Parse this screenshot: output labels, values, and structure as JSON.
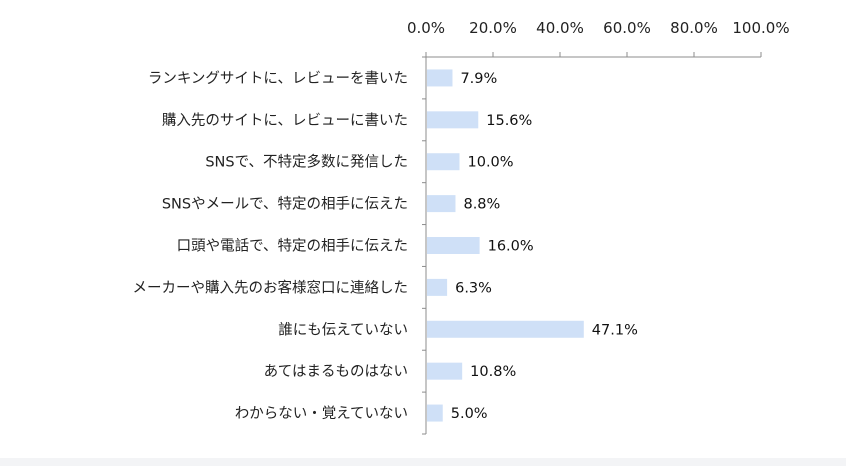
{
  "chart_data": {
    "type": "bar",
    "orientation": "horizontal",
    "categories": [
      "ランキングサイトに、レビューを書いた",
      "購入先のサイトに、レビューに書いた",
      "SNSで、不特定多数に発信した",
      "SNSやメールで、特定の相手に伝えた",
      "口頭や電話で、特定の相手に伝えた",
      "メーカーや購入先のお客様窓口に連絡した",
      "誰にも伝えていない",
      "あてはまるものはない",
      "わからない・覚えていない"
    ],
    "values": [
      7.9,
      15.6,
      10.0,
      8.8,
      16.0,
      6.3,
      47.1,
      10.8,
      5.0
    ],
    "value_labels": [
      "7.9%",
      "15.6%",
      "10.0%",
      "8.8%",
      "16.0%",
      "6.3%",
      "47.1%",
      "10.8%",
      "5.0%"
    ],
    "xlim": [
      0,
      100
    ],
    "x_ticks": [
      0,
      20,
      40,
      60,
      80,
      100
    ],
    "x_tick_labels": [
      "0.0%",
      "20.0%",
      "40.0%",
      "60.0%",
      "80.0%",
      "100.0%"
    ],
    "axis_position": "top",
    "grid": false,
    "bar_color": "#cfe0f7"
  }
}
